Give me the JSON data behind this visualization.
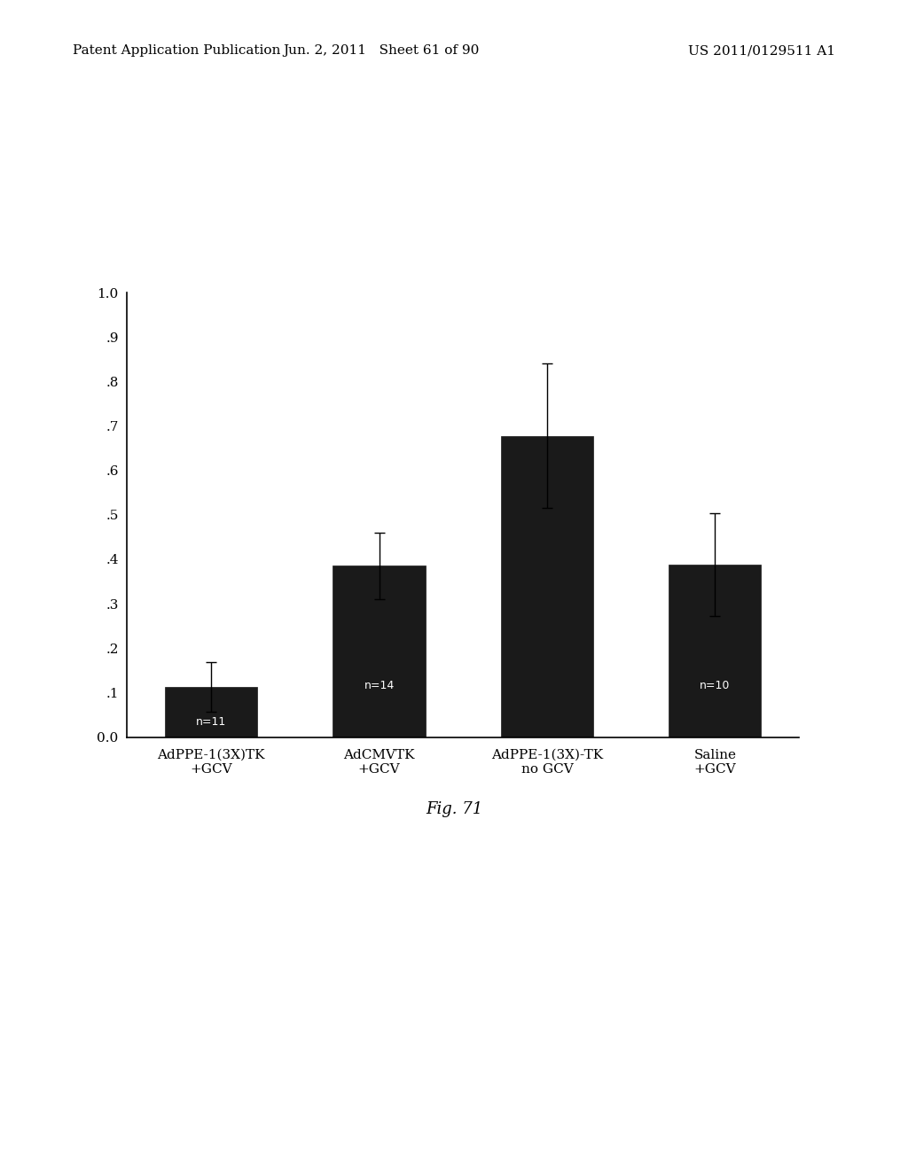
{
  "categories": [
    "AdPPE-1(3X)TK\n+GCV",
    "AdCMVTK\n+GCV",
    "AdPPE-1(3X)-TK\nno GCV",
    "Saline\n+GCV"
  ],
  "values": [
    0.113,
    0.385,
    0.678,
    0.388
  ],
  "errors": [
    0.055,
    0.075,
    0.162,
    0.115
  ],
  "bar_color": "#1a1a1a",
  "bar_labels": [
    "n=11",
    "n=14",
    "",
    "n=10"
  ],
  "yticks": [
    0.0,
    0.1,
    0.2,
    0.3,
    0.4,
    0.5,
    0.6,
    0.7,
    0.8,
    0.9,
    1.0
  ],
  "yticklabels": [
    "0.0",
    ".1",
    ".2",
    ".3",
    ".4",
    ".5",
    ".6",
    ".7",
    ".8",
    ".9",
    "1.0"
  ],
  "ylim": [
    0.0,
    1.0
  ],
  "fig_caption": "Fig. 71",
  "header_left": "Patent Application Publication",
  "header_mid": "Jun. 2, 2011   Sheet 61 of 90",
  "header_right": "US 2011/0129511 A1",
  "background_color": "#ffffff",
  "bar_width": 0.55,
  "label_fontsize": 9,
  "tick_fontsize": 11,
  "caption_fontsize": 13,
  "header_fontsize": 11
}
